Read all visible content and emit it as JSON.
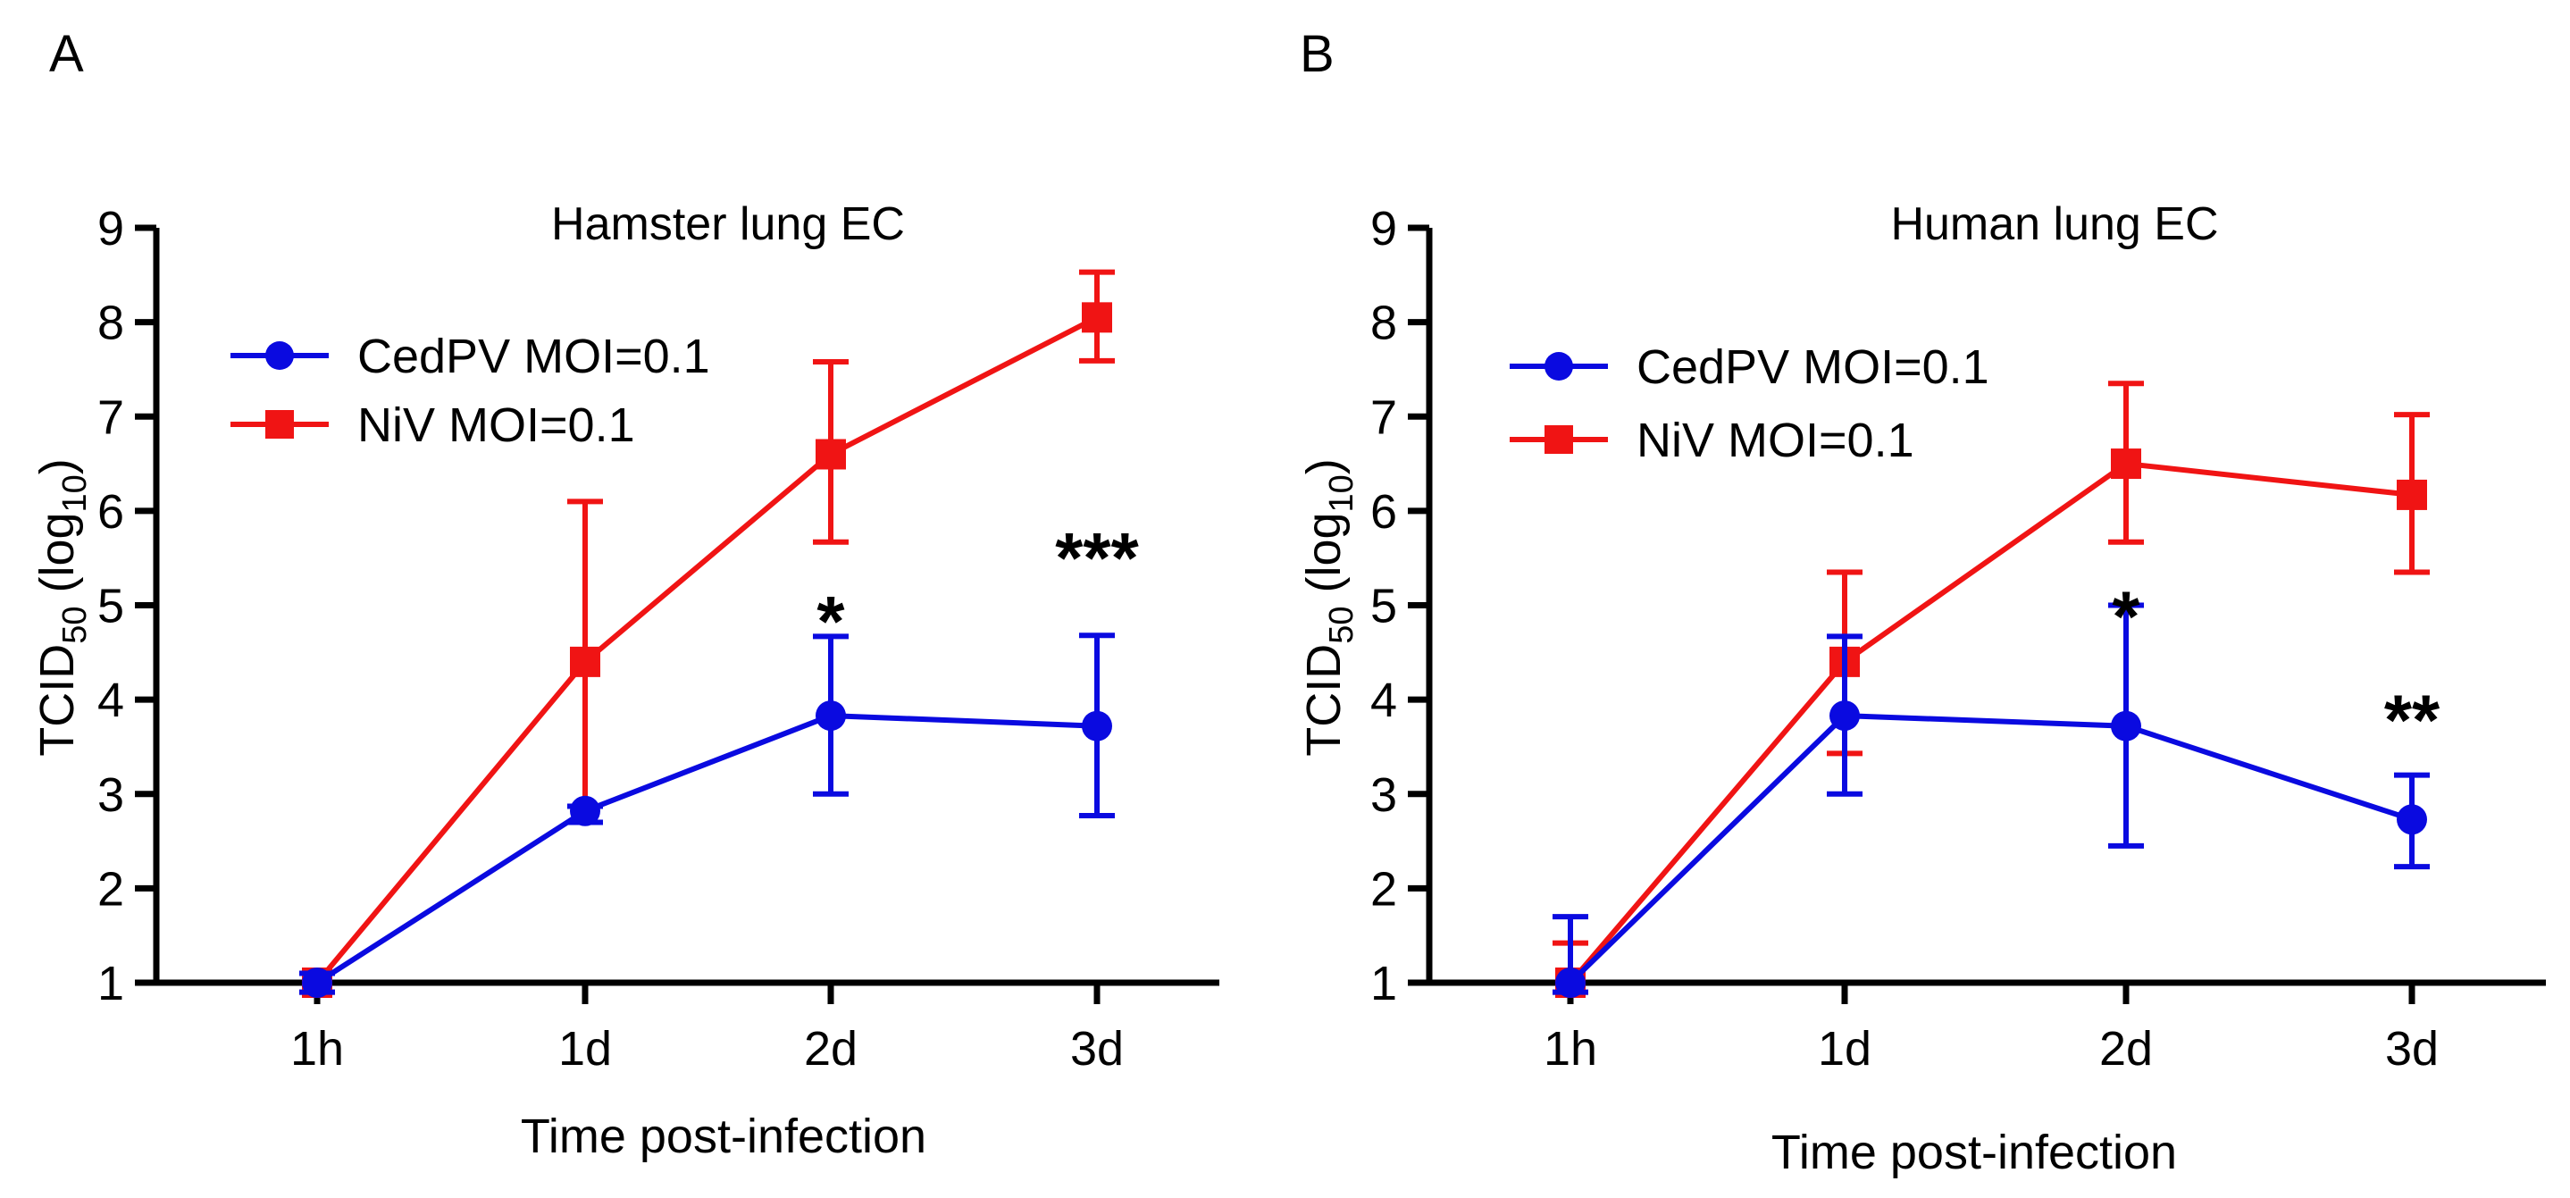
{
  "chart_data": [
    {
      "panel": "A",
      "type": "line",
      "title": "Hamster lung EC",
      "xlabel": "Time post-infection",
      "ylabel": {
        "main": "TCID",
        "sub": "50",
        "paren": " (log",
        "paren_sub": "10",
        "close": ")"
      },
      "categories": [
        "1h",
        "1d",
        "2d",
        "3d"
      ],
      "ylim": [
        1,
        9
      ],
      "yticks": [
        "1",
        "2",
        "3",
        "4",
        "5",
        "6",
        "7",
        "8",
        "9"
      ],
      "legend_position": "top-left",
      "series": [
        {
          "name": "CedPV MOI=0.1",
          "color": "#0a0ae0",
          "marker": "circle",
          "values": [
            1.0,
            2.82,
            3.83,
            3.72
          ],
          "err_low": [
            0.1,
            0.12,
            0.83,
            0.95
          ],
          "err_high": [
            0.1,
            0.05,
            0.84,
            0.96
          ]
        },
        {
          "name": "NiV MOI=0.1",
          "color": "#f01414",
          "marker": "square",
          "values": [
            1.0,
            4.4,
            6.6,
            8.05
          ],
          "err_low": [
            0.1,
            1.7,
            0.93,
            0.46
          ],
          "err_high": [
            0.1,
            1.7,
            0.98,
            0.48
          ]
        }
      ],
      "annotations": [
        {
          "text": "*",
          "category": "2d",
          "y": 4.95
        },
        {
          "text": "***",
          "category": "3d",
          "y": 5.62
        }
      ]
    },
    {
      "panel": "B",
      "type": "line",
      "title": "Human lung EC",
      "xlabel": "Time post-infection",
      "ylabel": {
        "main": "TCID",
        "sub": "50",
        "paren": " (log",
        "paren_sub": "10",
        "close": ")"
      },
      "categories": [
        "1h",
        "1d",
        "2d",
        "3d"
      ],
      "ylim": [
        1,
        9
      ],
      "yticks": [
        "1",
        "2",
        "3",
        "4",
        "5",
        "6",
        "7",
        "8",
        "9"
      ],
      "legend_position": "top-left",
      "series": [
        {
          "name": "CedPV MOI=0.1",
          "color": "#0a0ae0",
          "marker": "circle",
          "values": [
            1.0,
            3.83,
            3.72,
            2.73
          ],
          "err_low": [
            0.1,
            0.83,
            1.27,
            0.5
          ],
          "err_high": [
            0.7,
            0.84,
            1.28,
            0.47
          ]
        },
        {
          "name": "NiV MOI=0.1",
          "color": "#f01414",
          "marker": "square",
          "values": [
            1.0,
            4.4,
            6.5,
            6.17
          ],
          "err_low": [
            0.1,
            0.97,
            0.83,
            0.82
          ],
          "err_high": [
            0.42,
            0.95,
            0.85,
            0.85
          ]
        }
      ],
      "annotations": [
        {
          "text": "*",
          "category": "2d",
          "y": 5.0
        },
        {
          "text": "**",
          "category": "3d",
          "y": 3.9
        }
      ]
    }
  ]
}
